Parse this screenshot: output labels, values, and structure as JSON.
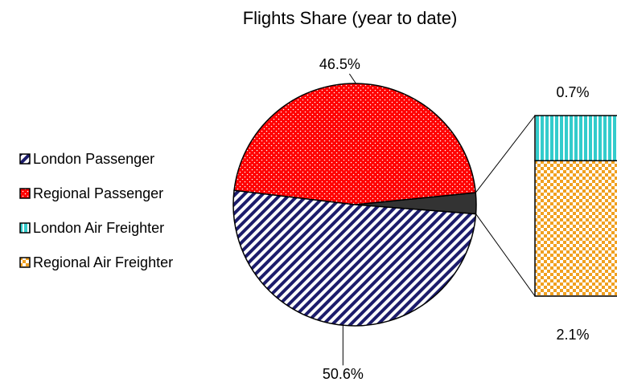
{
  "chart_data": {
    "type": "pie-of-bar",
    "title": "Flights Share (year to date)",
    "categories": [
      "London Passenger",
      "Regional Passenger",
      "London Air Freighter",
      "Regional Air Freighter"
    ],
    "values": [
      50.6,
      46.5,
      0.7,
      2.1
    ],
    "value_labels": [
      "50.6%",
      "46.5%",
      "0.7%",
      "2.1%"
    ],
    "colors": [
      "#1c1c6b",
      "#ff0000",
      "#33cccc",
      "#f0a020"
    ],
    "other_color": "#333333",
    "legend": "left"
  }
}
